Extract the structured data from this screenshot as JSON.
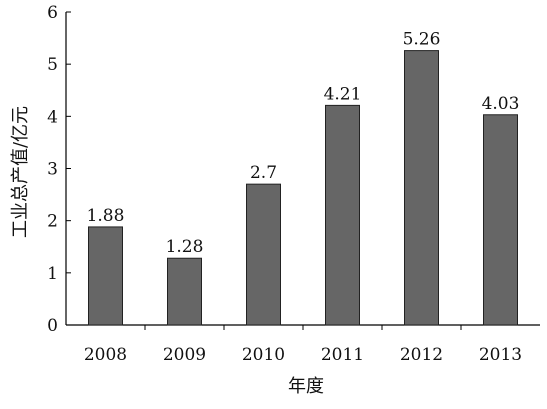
{
  "chart_data": {
    "type": "bar",
    "categories": [
      "2008",
      "2009",
      "2010",
      "2011",
      "2012",
      "2013"
    ],
    "values": [
      1.88,
      1.28,
      2.7,
      4.21,
      5.26,
      4.03
    ],
    "data_labels": [
      "1.88",
      "1.28",
      "2.7",
      "4.21",
      "5.26",
      "4.03"
    ],
    "xlabel": "年度",
    "ylabel": "工业总产值/亿元",
    "ylim": [
      0,
      6
    ],
    "yticks": [
      "0",
      "1",
      "2",
      "3",
      "4",
      "5",
      "6"
    ],
    "grid": false,
    "bar_color": "#666666"
  }
}
